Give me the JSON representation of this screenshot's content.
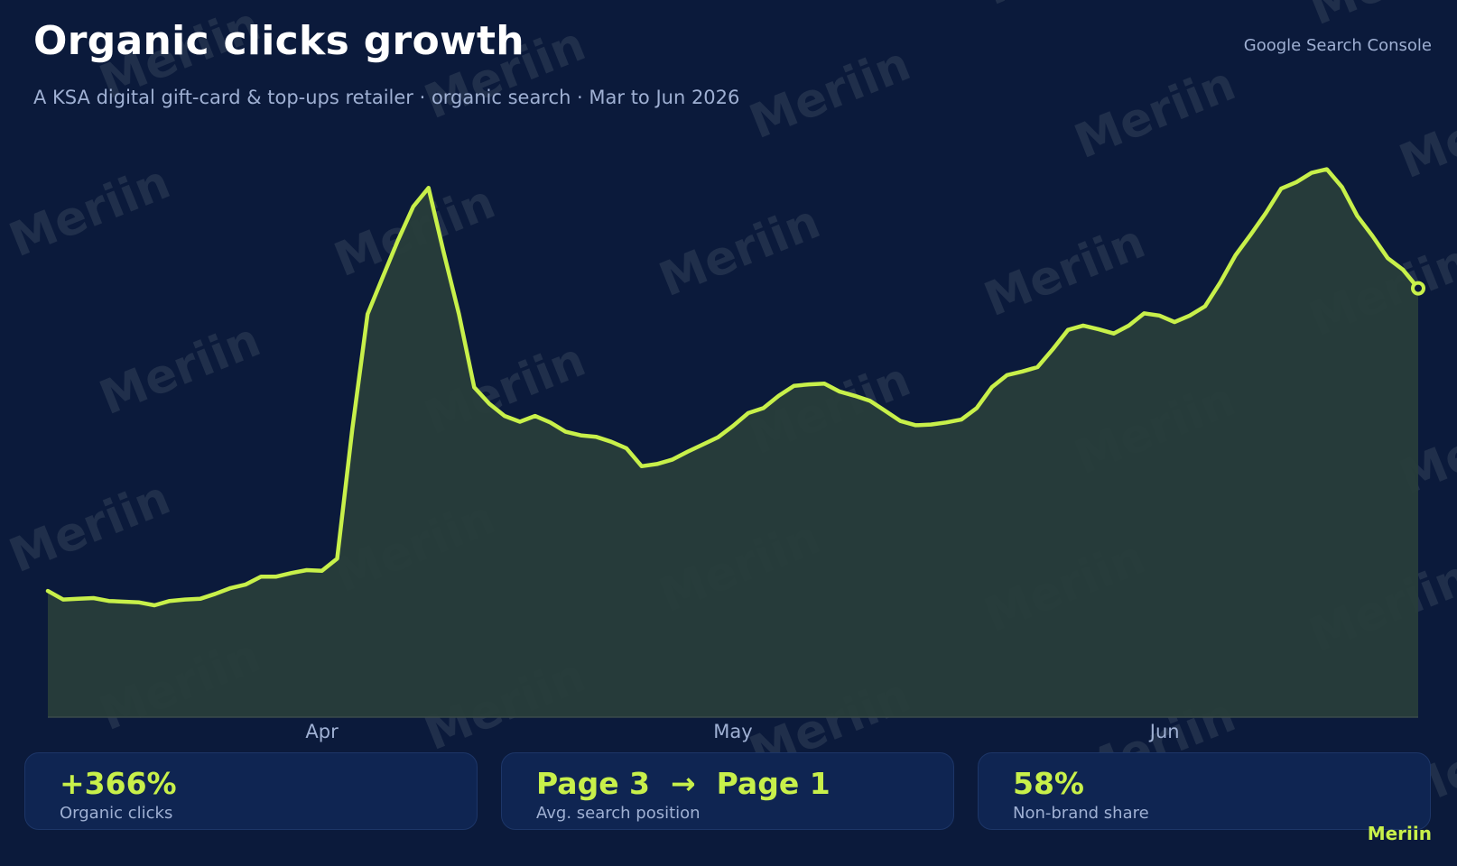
{
  "header": {
    "title": "Organic clicks growth",
    "subtitle": "A KSA digital gift-card & top-ups retailer  ·  organic search  ·  Mar to Jun 2026",
    "source": "Google Search Console"
  },
  "watermark": {
    "text": "Meriin"
  },
  "colors": {
    "background": "#0b1a3b",
    "accent": "#c8f04a",
    "area_fill": "#283d3a",
    "muted_text": "#9fb0d3",
    "card_bg": "#0f2552"
  },
  "chart_data": {
    "type": "area",
    "x_ticks": [
      "Apr",
      "May",
      "Jun"
    ],
    "x_tick_positions": [
      20,
      50,
      81.5
    ],
    "y_axis_visible": false,
    "grid": false,
    "ylim": [
      0,
      100
    ],
    "last_point_marker": true,
    "values": [
      17.6,
      16.4,
      16.5,
      16.6,
      16.2,
      16.1,
      16.0,
      15.6,
      16.2,
      16.4,
      16.5,
      17.2,
      18.0,
      18.5,
      19.6,
      19.6,
      20.1,
      20.5,
      20.4,
      22.1,
      40.2,
      56.2,
      61.4,
      66.5,
      71.2,
      73.8,
      64.8,
      56.2,
      46.0,
      43.7,
      42.0,
      41.2,
      42.0,
      41.1,
      39.8,
      39.3,
      39.1,
      38.4,
      37.5,
      35.0,
      35.3,
      35.9,
      37.0,
      38.0,
      39.0,
      40.6,
      42.4,
      43.1,
      44.8,
      46.2,
      46.4,
      46.5,
      45.4,
      44.8,
      44.1,
      42.7,
      41.3,
      40.7,
      40.8,
      41.1,
      41.5,
      43.1,
      46.0,
      47.7,
      48.2,
      48.8,
      51.3,
      54.0,
      54.6,
      54.1,
      53.5,
      54.6,
      56.3,
      56.0,
      55.1,
      56.0,
      57.3,
      60.6,
      64.4,
      67.3,
      70.3,
      73.7,
      74.6,
      75.9,
      76.4,
      73.9,
      69.9,
      67.1,
      64.0,
      62.4,
      59.8
    ]
  },
  "kpis": [
    {
      "value": "+366%",
      "label": "Organic clicks"
    },
    {
      "value": "Page 3  →  Page 1",
      "label": "Avg. search position"
    },
    {
      "value": "58%",
      "label": "Non-brand share"
    }
  ],
  "brand": "Meriin"
}
